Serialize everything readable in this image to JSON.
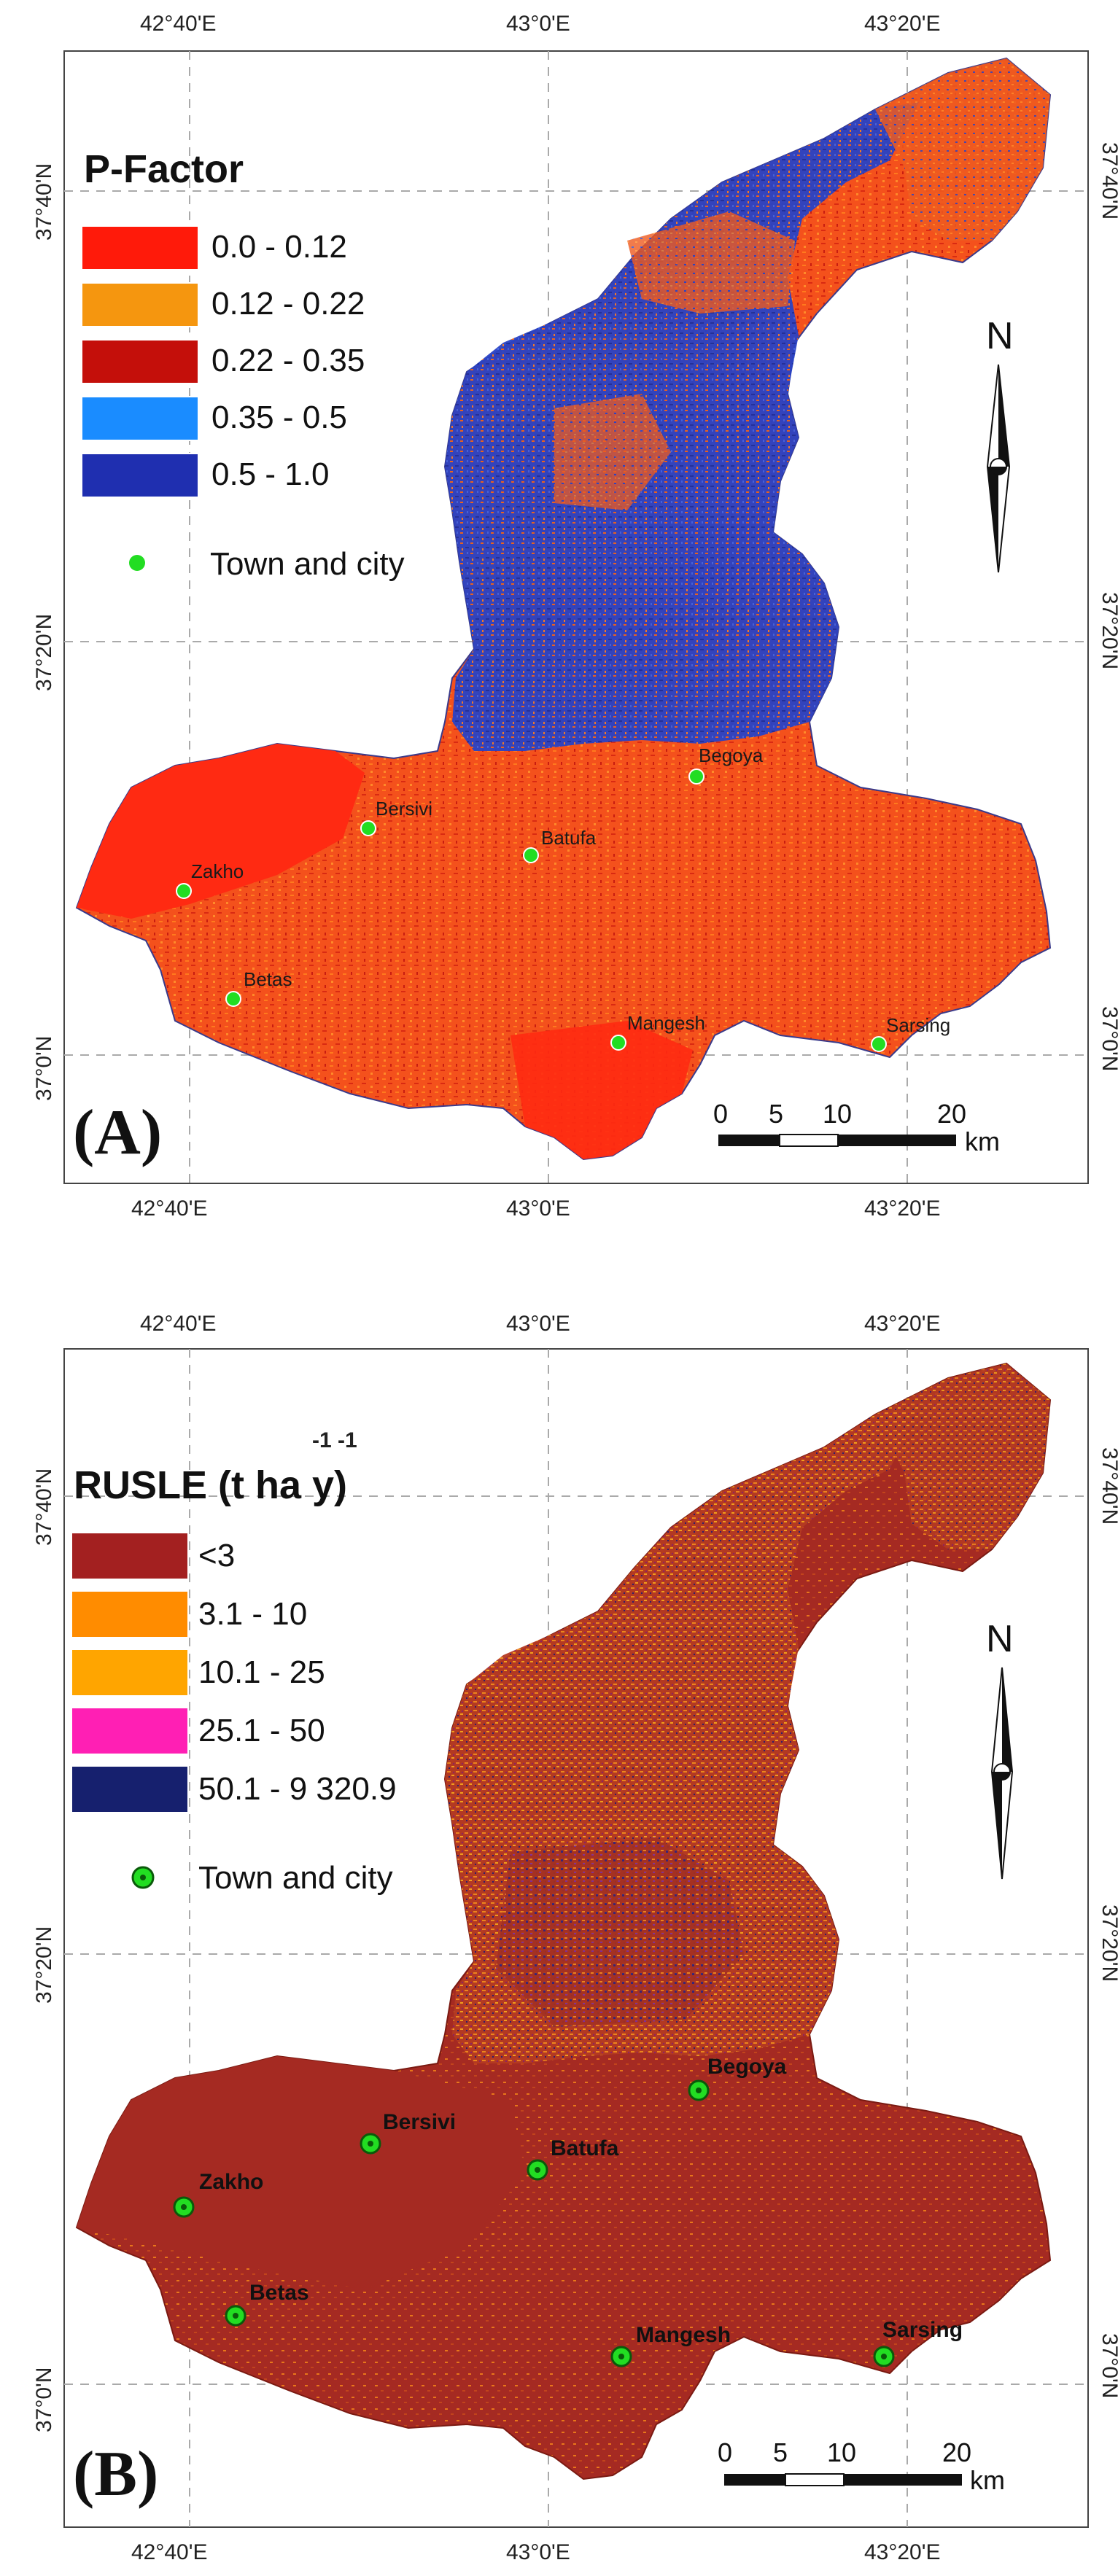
{
  "panels": [
    {
      "id": "A",
      "panel_label": "(A)",
      "legend_title": "P-Factor",
      "legend_title_sup": "",
      "legend": [
        {
          "label": "0.0 - 0.12",
          "color": "#ff1a0a"
        },
        {
          "label": "0.12 - 0.22",
          "color": "#f5960f"
        },
        {
          "label": "0.22 - 0.35",
          "color": "#c40f0a"
        },
        {
          "label": "0.35 - 0.5",
          "color": "#1a8cff"
        },
        {
          "label": "0.5 - 1.0",
          "color": "#1f2fb0"
        }
      ],
      "town_legend_label": "Town and city",
      "towns": [
        "Begoya",
        "Bersivi",
        "Batufa",
        "Zakho",
        "Betas",
        "Mangesh",
        "Sarsing"
      ],
      "lon_ticks_top": [
        "42°40'E",
        "43°0'E",
        "43°20'E"
      ],
      "lon_ticks_bottom": [
        "42°40'E",
        "43°0'E",
        "43°20'E"
      ],
      "lat_ticks_left": [
        "37°40'N",
        "37°20'N",
        "37°0'N"
      ],
      "lat_ticks_right": [
        "37°40'N",
        "37°20'N",
        "37°0'N"
      ],
      "north": "N",
      "scale_labels": [
        "0",
        "5",
        "10",
        "20"
      ],
      "scale_unit": "km",
      "colors": {
        "base": "#f54a18",
        "accent": "#2b45c8",
        "town": "#22dd22"
      }
    },
    {
      "id": "B",
      "panel_label": "(B)",
      "legend_title": "RUSLE (t ha y)",
      "legend_title_sup": "-1 -1",
      "legend": [
        {
          "label": "<3",
          "color": "#a32020"
        },
        {
          "label": "3.1 - 10",
          "color": "#ff8c00"
        },
        {
          "label": "10.1 - 25",
          "color": "#ffa500"
        },
        {
          "label": "25.1 - 50",
          "color": "#ff1fb4"
        },
        {
          "label": "50.1 - 9 320.9",
          "color": "#16206e"
        }
      ],
      "town_legend_label": "Town and city",
      "towns": [
        "Begoya",
        "Bersivi",
        "Batufa",
        "Zakho",
        "Betas",
        "Mangesh",
        "Sarsing"
      ],
      "lon_ticks_top": [
        "42°40'E",
        "43°0'E",
        "43°20'E"
      ],
      "lon_ticks_bottom": [
        "42°40'E",
        "43°0'E",
        "43°20'E"
      ],
      "lat_ticks_left": [
        "37°40'N",
        "37°20'N",
        "37°0'N"
      ],
      "lat_ticks_right": [
        "37°40'N",
        "37°20'N",
        "37°0'N"
      ],
      "north": "N",
      "scale_labels": [
        "0",
        "5",
        "10",
        "20"
      ],
      "scale_unit": "km",
      "colors": {
        "base": "#a52a22",
        "accent": "#e8761a",
        "town": "#22dd22"
      }
    }
  ]
}
